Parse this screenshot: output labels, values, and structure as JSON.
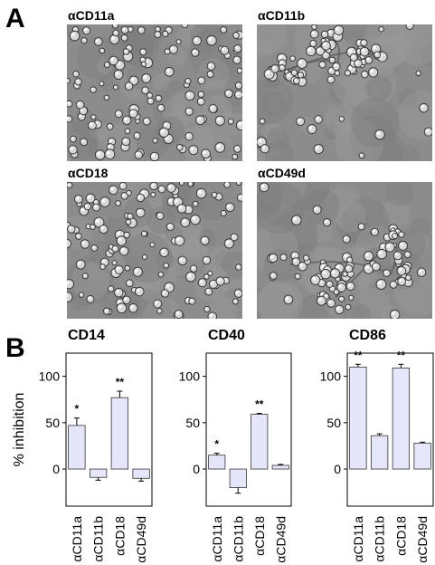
{
  "panel_a": {
    "letter": "A",
    "images": [
      {
        "label": "αCD11a",
        "pattern": "dispersed"
      },
      {
        "label": "αCD11b",
        "pattern": "clustered"
      },
      {
        "label": "αCD18",
        "pattern": "dispersed"
      },
      {
        "label": "αCD49d",
        "pattern": "clustered"
      }
    ]
  },
  "panel_b": {
    "letter": "B"
  },
  "chart_data": [
    {
      "type": "bar",
      "title": "CD14",
      "ylabel": "% inhibition",
      "categories": [
        "αCD11a",
        "αCD11b",
        "αCD18",
        "αCD49d"
      ],
      "values": [
        47,
        -9,
        77,
        -10
      ],
      "errors": [
        8,
        3,
        7,
        3
      ],
      "significance": [
        "*",
        "",
        "**",
        ""
      ],
      "yticks": [
        "100",
        "50",
        "0"
      ],
      "ylim": [
        -40,
        125
      ],
      "bar_color": "#e6e6fa"
    },
    {
      "type": "bar",
      "title": "CD40",
      "ylabel": "",
      "categories": [
        "αCD11a",
        "αCD11b",
        "αCD18",
        "αCD49d"
      ],
      "values": [
        15,
        -20,
        59,
        4
      ],
      "errors": [
        2,
        6,
        1,
        1
      ],
      "significance": [
        "*",
        "",
        "**",
        ""
      ],
      "yticks": [
        "100",
        "50",
        "0"
      ],
      "ylim": [
        -40,
        125
      ],
      "bar_color": "#e6e6fa"
    },
    {
      "type": "bar",
      "title": "CD86",
      "ylabel": "",
      "categories": [
        "αCD11a",
        "αCD11b",
        "αCD18",
        "αCD49d"
      ],
      "values": [
        110,
        36,
        109,
        28
      ],
      "errors": [
        3,
        2,
        4,
        1
      ],
      "significance": [
        "**",
        "",
        "**",
        ""
      ],
      "yticks": [
        "100",
        "50",
        "0"
      ],
      "ylim": [
        -40,
        125
      ],
      "bar_color": "#e6e6fa"
    }
  ]
}
